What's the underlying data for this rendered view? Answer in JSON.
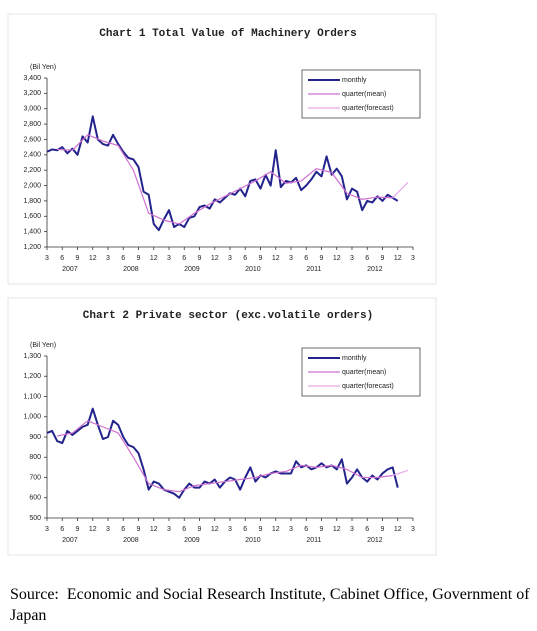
{
  "chart_data": [
    {
      "type": "line",
      "title": "Chart 1 Total Value of Machinery Orders",
      "y_label": "(Bil Yen)",
      "ylim": [
        1200,
        3400
      ],
      "yticks": [
        {
          "value": 1200,
          "label": "1,200"
        },
        {
          "value": 1400,
          "label": "1,400"
        },
        {
          "value": 1600,
          "label": "1,600"
        },
        {
          "value": 1800,
          "label": "1,800"
        },
        {
          "value": 2000,
          "label": "2,000"
        },
        {
          "value": 2200,
          "label": "2,200"
        },
        {
          "value": 2400,
          "label": "2,400"
        },
        {
          "value": 2600,
          "label": "2,600"
        },
        {
          "value": 2800,
          "label": "2,800"
        },
        {
          "value": 3000,
          "label": "3,000"
        },
        {
          "value": 3200,
          "label": "3,200"
        },
        {
          "value": 3400,
          "label": "3,400"
        }
      ],
      "xlim": [
        "2007-03",
        "2013-03"
      ],
      "xticks": [
        {
          "value": "2007-03",
          "label": "3"
        },
        {
          "value": "2007-06",
          "label": "6"
        },
        {
          "value": "2007-09",
          "label": "9"
        },
        {
          "value": "2007-12",
          "label": "12"
        },
        {
          "value": "2008-03",
          "label": "3"
        },
        {
          "value": "2008-06",
          "label": "6"
        },
        {
          "value": "2008-09",
          "label": "9"
        },
        {
          "value": "2008-12",
          "label": "12"
        },
        {
          "value": "2009-03",
          "label": "3"
        },
        {
          "value": "2009-06",
          "label": "6"
        },
        {
          "value": "2009-09",
          "label": "9"
        },
        {
          "value": "2009-12",
          "label": "12"
        },
        {
          "value": "2010-03",
          "label": "3"
        },
        {
          "value": "2010-06",
          "label": "6"
        },
        {
          "value": "2010-09",
          "label": "9"
        },
        {
          "value": "2010-12",
          "label": "12"
        },
        {
          "value": "2011-03",
          "label": "3"
        },
        {
          "value": "2011-06",
          "label": "6"
        },
        {
          "value": "2011-09",
          "label": "9"
        },
        {
          "value": "2011-12",
          "label": "12"
        },
        {
          "value": "2012-03",
          "label": "3"
        },
        {
          "value": "2012-06",
          "label": "6"
        },
        {
          "value": "2012-09",
          "label": "9"
        },
        {
          "value": "2012-12",
          "label": "12"
        },
        {
          "value": "2013-03",
          "label": "3"
        }
      ],
      "year_labels": [
        "2007",
        "2008",
        "2009",
        "2010",
        "2011",
        "2012"
      ],
      "legend": "upper right",
      "series": [
        {
          "name": "monthly",
          "color": "#23238c",
          "x": [
            "2007-03",
            "2007-04",
            "2007-05",
            "2007-06",
            "2007-07",
            "2007-08",
            "2007-09",
            "2007-10",
            "2007-11",
            "2007-12",
            "2008-01",
            "2008-02",
            "2008-03",
            "2008-04",
            "2008-05",
            "2008-06",
            "2008-07",
            "2008-08",
            "2008-09",
            "2008-10",
            "2008-11",
            "2008-12",
            "2009-01",
            "2009-02",
            "2009-03",
            "2009-04",
            "2009-05",
            "2009-06",
            "2009-07",
            "2009-08",
            "2009-09",
            "2009-10",
            "2009-11",
            "2009-12",
            "2010-01",
            "2010-02",
            "2010-03",
            "2010-04",
            "2010-05",
            "2010-06",
            "2010-07",
            "2010-08",
            "2010-09",
            "2010-10",
            "2010-11",
            "2010-12",
            "2011-01",
            "2011-02",
            "2011-03",
            "2011-04",
            "2011-05",
            "2011-06",
            "2011-07",
            "2011-08",
            "2011-09",
            "2011-10",
            "2011-11",
            "2011-12",
            "2012-01",
            "2012-02",
            "2012-03",
            "2012-04",
            "2012-05",
            "2012-06",
            "2012-07",
            "2012-08",
            "2012-09",
            "2012-10",
            "2012-11",
            "2012-12"
          ],
          "values": [
            2440,
            2470,
            2460,
            2500,
            2420,
            2480,
            2400,
            2640,
            2560,
            2900,
            2600,
            2540,
            2520,
            2660,
            2540,
            2440,
            2360,
            2340,
            2240,
            1920,
            1880,
            1500,
            1420,
            1560,
            1680,
            1460,
            1500,
            1460,
            1580,
            1600,
            1720,
            1740,
            1700,
            1820,
            1780,
            1840,
            1900,
            1880,
            1960,
            1860,
            2060,
            2080,
            1960,
            2140,
            2000,
            2460,
            1980,
            2060,
            2040,
            2100,
            1940,
            2000,
            2080,
            2180,
            2120,
            2380,
            2140,
            2220,
            2120,
            1820,
            1960,
            1920,
            1680,
            1800,
            1780,
            1860,
            1800,
            1880,
            1840,
            1800
          ]
        },
        {
          "name": "quarter(mean)",
          "color": "#d070d0",
          "x": [
            "2007-05",
            "2007-08",
            "2007-11",
            "2008-02",
            "2008-05",
            "2008-08",
            "2008-11",
            "2009-02",
            "2009-05",
            "2009-08",
            "2009-11",
            "2010-02",
            "2010-05",
            "2010-08",
            "2010-11",
            "2011-02",
            "2011-05",
            "2011-08",
            "2011-11",
            "2012-02",
            "2012-05",
            "2012-08",
            "2012-11"
          ],
          "values": [
            2470,
            2460,
            2660,
            2580,
            2520,
            2200,
            1640,
            1550,
            1500,
            1640,
            1760,
            1860,
            1960,
            2060,
            2180,
            2030,
            2060,
            2220,
            2170,
            1900,
            1820,
            1850,
            1840
          ]
        },
        {
          "name": "quarter(forecast)",
          "color": "#e8a8e8",
          "x": [
            "2012-11",
            "2013-02"
          ],
          "values": [
            1840,
            2040
          ]
        }
      ]
    },
    {
      "type": "line",
      "title": "Chart 2 Private sector (exc.volatile orders)",
      "y_label": "(Bil Yen)",
      "ylim": [
        500,
        1300
      ],
      "yticks": [
        500,
        600,
        700,
        800,
        900,
        {
          "value": 1000,
          "label": "1,000"
        },
        {
          "value": 1100,
          "label": "1,100"
        },
        {
          "value": 1200,
          "label": "1,200"
        },
        {
          "value": 1300,
          "label": "1,300"
        }
      ],
      "xlim": [
        "2007-03",
        "2013-03"
      ],
      "xticks": [
        {
          "value": "2007-03",
          "label": "3"
        },
        {
          "value": "2007-06",
          "label": "6"
        },
        {
          "value": "2007-09",
          "label": "9"
        },
        {
          "value": "2007-12",
          "label": "12"
        },
        {
          "value": "2008-03",
          "label": "3"
        },
        {
          "value": "2008-06",
          "label": "6"
        },
        {
          "value": "2008-09",
          "label": "9"
        },
        {
          "value": "2008-12",
          "label": "12"
        },
        {
          "value": "2009-03",
          "label": "3"
        },
        {
          "value": "2009-06",
          "label": "6"
        },
        {
          "value": "2009-09",
          "label": "9"
        },
        {
          "value": "2009-12",
          "label": "12"
        },
        {
          "value": "2010-03",
          "label": "3"
        },
        {
          "value": "2010-06",
          "label": "6"
        },
        {
          "value": "2010-09",
          "label": "9"
        },
        {
          "value": "2010-12",
          "label": "12"
        },
        {
          "value": "2011-03",
          "label": "3"
        },
        {
          "value": "2011-06",
          "label": "6"
        },
        {
          "value": "2011-09",
          "label": "9"
        },
        {
          "value": "2011-12",
          "label": "12"
        },
        {
          "value": "2012-03",
          "label": "3"
        },
        {
          "value": "2012-06",
          "label": "6"
        },
        {
          "value": "2012-09",
          "label": "9"
        },
        {
          "value": "2012-12",
          "label": "12"
        },
        {
          "value": "2013-03",
          "label": "3"
        }
      ],
      "year_labels": [
        "2007",
        "2008",
        "2009",
        "2010",
        "2011",
        "2012"
      ],
      "legend": "upper right",
      "series": [
        {
          "name": "monthly",
          "color": "#23238c",
          "x": [
            "2007-03",
            "2007-04",
            "2007-05",
            "2007-06",
            "2007-07",
            "2007-08",
            "2007-09",
            "2007-10",
            "2007-11",
            "2007-12",
            "2008-01",
            "2008-02",
            "2008-03",
            "2008-04",
            "2008-05",
            "2008-06",
            "2008-07",
            "2008-08",
            "2008-09",
            "2008-10",
            "2008-11",
            "2008-12",
            "2009-01",
            "2009-02",
            "2009-03",
            "2009-04",
            "2009-05",
            "2009-06",
            "2009-07",
            "2009-08",
            "2009-09",
            "2009-10",
            "2009-11",
            "2009-12",
            "2010-01",
            "2010-02",
            "2010-03",
            "2010-04",
            "2010-05",
            "2010-06",
            "2010-07",
            "2010-08",
            "2010-09",
            "2010-10",
            "2010-11",
            "2010-12",
            "2011-01",
            "2011-02",
            "2011-03",
            "2011-04",
            "2011-05",
            "2011-06",
            "2011-07",
            "2011-08",
            "2011-09",
            "2011-10",
            "2011-11",
            "2011-12",
            "2012-01",
            "2012-02",
            "2012-03",
            "2012-04",
            "2012-05",
            "2012-06",
            "2012-07",
            "2012-08",
            "2012-09",
            "2012-10",
            "2012-11",
            "2012-12"
          ],
          "values": [
            920,
            930,
            880,
            870,
            930,
            910,
            930,
            950,
            960,
            1040,
            960,
            890,
            900,
            980,
            960,
            900,
            860,
            850,
            820,
            740,
            640,
            680,
            670,
            640,
            630,
            620,
            600,
            640,
            670,
            650,
            650,
            680,
            670,
            690,
            650,
            680,
            700,
            690,
            640,
            700,
            750,
            680,
            710,
            700,
            720,
            730,
            720,
            720,
            720,
            780,
            750,
            760,
            740,
            750,
            770,
            750,
            760,
            740,
            790,
            670,
            700,
            740,
            700,
            680,
            710,
            690,
            720,
            740,
            750,
            650
          ]
        },
        {
          "name": "quarter(mean)",
          "color": "#d070d0",
          "x": [
            "2007-05",
            "2007-08",
            "2007-11",
            "2008-02",
            "2008-05",
            "2008-08",
            "2008-11",
            "2009-02",
            "2009-05",
            "2009-08",
            "2009-11",
            "2010-02",
            "2010-05",
            "2010-08",
            "2010-11",
            "2011-02",
            "2011-05",
            "2011-08",
            "2011-11",
            "2012-02",
            "2012-05",
            "2012-08",
            "2012-11"
          ],
          "values": [
            905,
            920,
            980,
            950,
            920,
            800,
            670,
            640,
            630,
            660,
            670,
            680,
            690,
            700,
            720,
            730,
            760,
            750,
            760,
            740,
            700,
            700,
            710
          ]
        },
        {
          "name": "quarter(forecast)",
          "color": "#e8a8e8",
          "x": [
            "2012-11",
            "2013-02"
          ],
          "values": [
            710,
            735
          ]
        }
      ]
    }
  ],
  "source": "Source:  Economic and Social Research Institute, Cabinet Office, Government of Japan"
}
